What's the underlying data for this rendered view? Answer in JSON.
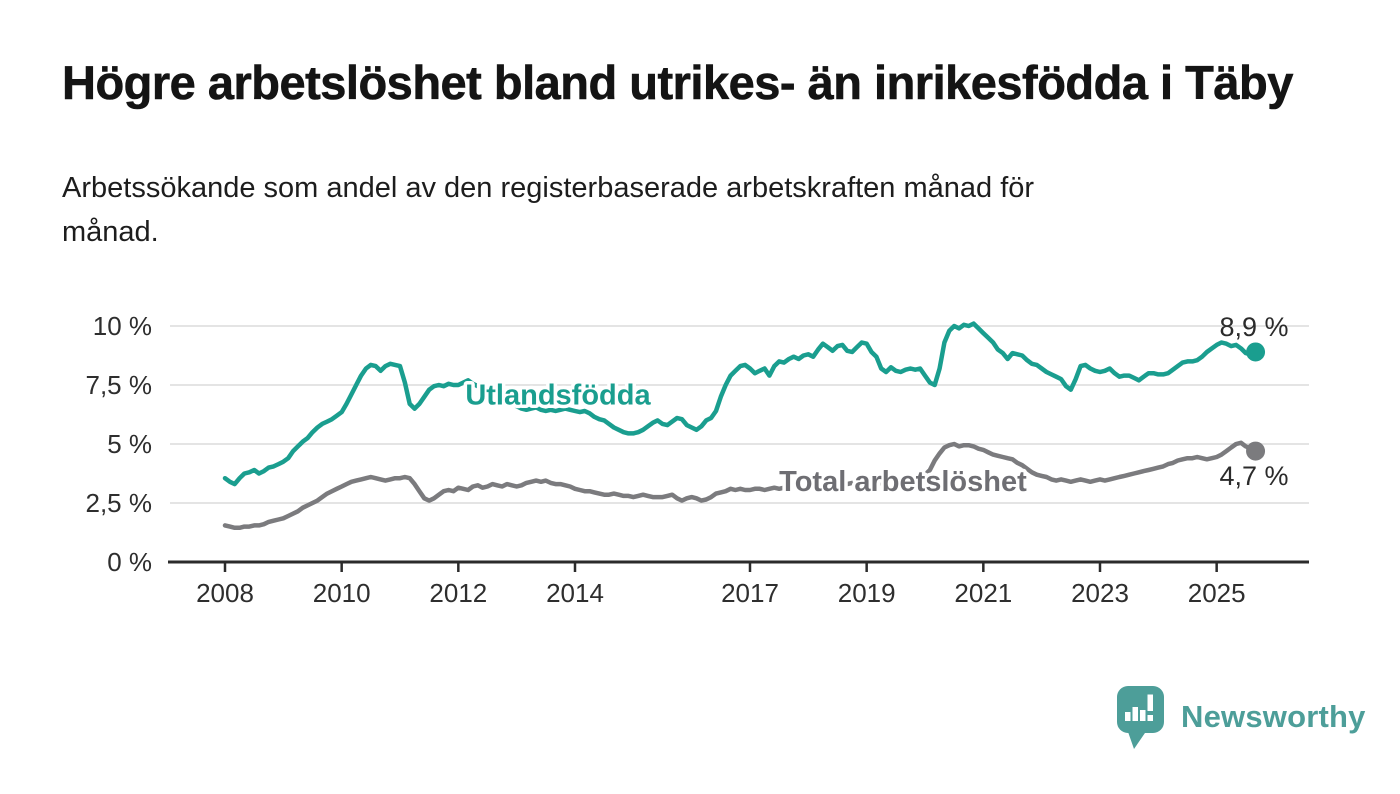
{
  "header": {
    "title": "Högre arbetslöshet bland utrikes- än inrikesfödda i Täby",
    "subtitle_lines": [
      "Arbetssökande som andel av den registerbaserade arbetskraften månad för",
      "månad."
    ]
  },
  "chart_data": {
    "type": "line",
    "title": "",
    "xlabel": "",
    "ylabel": "",
    "x_unit": "monthly, decimal years",
    "x_start_year": 2008,
    "x_step_months": 1,
    "x_end": "2025-09",
    "ylim": [
      0,
      10.5
    ],
    "grid": true,
    "legend_position": "inline-labels",
    "y_ticks": [
      {
        "value": 0,
        "label": "0 %"
      },
      {
        "value": 2.5,
        "label": "2,5 %"
      },
      {
        "value": 5,
        "label": "5 %"
      },
      {
        "value": 7.5,
        "label": "7,5 %"
      },
      {
        "value": 10,
        "label": "10 %"
      }
    ],
    "x_ticks": [
      {
        "year": 2008,
        "label": "2008"
      },
      {
        "year": 2010,
        "label": "2010"
      },
      {
        "year": 2012,
        "label": "2012"
      },
      {
        "year": 2014,
        "label": "2014"
      },
      {
        "year": 2017,
        "label": "2017"
      },
      {
        "year": 2019,
        "label": "2019"
      },
      {
        "year": 2021,
        "label": "2021"
      },
      {
        "year": 2023,
        "label": "2023"
      },
      {
        "year": 2025,
        "label": "2025"
      }
    ],
    "colors": {
      "grid": "#dcdcdc",
      "axis": "#2b2b2b",
      "tick_text": "#2e2e2e",
      "value_text": "#2b2b2b"
    },
    "series": [
      {
        "name": "Utlandsfödda",
        "color": "#1a9e8f",
        "label_color": "#1a9e8f",
        "label_anchor": {
          "x_year": 2012.12,
          "y_value": 6.68
        },
        "end_label": "8,9 %",
        "end_value": 8.9,
        "values": [
          3.55,
          3.4,
          3.3,
          3.55,
          3.75,
          3.8,
          3.9,
          3.75,
          3.85,
          4.0,
          4.05,
          4.15,
          4.25,
          4.4,
          4.7,
          4.9,
          5.1,
          5.25,
          5.5,
          5.7,
          5.85,
          5.95,
          6.05,
          6.2,
          6.35,
          6.7,
          7.1,
          7.5,
          7.9,
          8.2,
          8.35,
          8.3,
          8.1,
          8.3,
          8.4,
          8.35,
          8.3,
          7.6,
          6.7,
          6.5,
          6.7,
          7.0,
          7.3,
          7.45,
          7.5,
          7.45,
          7.55,
          7.5,
          7.5,
          7.6,
          7.7,
          7.55,
          7.45,
          7.5,
          7.4,
          7.3,
          7.2,
          7.1,
          6.95,
          6.8,
          6.6,
          6.5,
          6.45,
          6.5,
          6.55,
          6.45,
          6.4,
          6.45,
          6.4,
          6.45,
          6.5,
          6.45,
          6.4,
          6.35,
          6.4,
          6.3,
          6.15,
          6.05,
          6.0,
          5.85,
          5.7,
          5.6,
          5.5,
          5.45,
          5.45,
          5.5,
          5.6,
          5.75,
          5.9,
          6.0,
          5.85,
          5.8,
          5.95,
          6.1,
          6.05,
          5.8,
          5.7,
          5.6,
          5.75,
          6.0,
          6.1,
          6.4,
          7.0,
          7.5,
          7.9,
          8.1,
          8.3,
          8.35,
          8.2,
          8.0,
          8.1,
          8.2,
          7.9,
          8.3,
          8.5,
          8.45,
          8.6,
          8.7,
          8.6,
          8.75,
          8.8,
          8.7,
          9.0,
          9.25,
          9.1,
          8.95,
          9.15,
          9.2,
          8.95,
          8.9,
          9.1,
          9.3,
          9.25,
          8.9,
          8.7,
          8.2,
          8.05,
          8.25,
          8.1,
          8.05,
          8.15,
          8.2,
          8.15,
          8.2,
          7.9,
          7.6,
          7.5,
          8.2,
          9.3,
          9.8,
          10.0,
          9.9,
          10.05,
          10.0,
          10.1,
          9.9,
          9.7,
          9.5,
          9.3,
          9.0,
          8.85,
          8.6,
          8.85,
          8.8,
          8.75,
          8.55,
          8.4,
          8.35,
          8.2,
          8.05,
          7.95,
          7.85,
          7.75,
          7.45,
          7.3,
          7.75,
          8.3,
          8.35,
          8.2,
          8.1,
          8.05,
          8.1,
          8.2,
          8.0,
          7.85,
          7.9,
          7.9,
          7.8,
          7.7,
          7.85,
          8.0,
          8.0,
          7.95,
          7.95,
          8.0,
          8.15,
          8.3,
          8.45,
          8.5,
          8.5,
          8.55,
          8.7,
          8.9,
          9.05,
          9.2,
          9.3,
          9.25,
          9.15,
          9.2,
          9.05,
          8.85,
          8.8,
          8.9
        ]
      },
      {
        "name": "Total arbetslöshet",
        "color": "#7b7b7e",
        "label_color": "#6e6e73",
        "label_anchor": {
          "x_year": 2017.5,
          "y_value": 3.0
        },
        "end_label": "4,7 %",
        "end_value": 4.7,
        "values": [
          1.55,
          1.5,
          1.45,
          1.45,
          1.5,
          1.5,
          1.55,
          1.55,
          1.6,
          1.7,
          1.75,
          1.8,
          1.85,
          1.95,
          2.05,
          2.15,
          2.3,
          2.4,
          2.5,
          2.6,
          2.75,
          2.9,
          3.0,
          3.1,
          3.2,
          3.3,
          3.4,
          3.45,
          3.5,
          3.55,
          3.6,
          3.55,
          3.5,
          3.45,
          3.5,
          3.55,
          3.55,
          3.6,
          3.55,
          3.3,
          3.0,
          2.7,
          2.6,
          2.7,
          2.85,
          3.0,
          3.05,
          3.0,
          3.15,
          3.1,
          3.05,
          3.2,
          3.25,
          3.15,
          3.2,
          3.3,
          3.25,
          3.2,
          3.3,
          3.25,
          3.2,
          3.25,
          3.35,
          3.4,
          3.45,
          3.4,
          3.45,
          3.35,
          3.3,
          3.3,
          3.25,
          3.2,
          3.1,
          3.05,
          3.0,
          3.0,
          2.95,
          2.9,
          2.85,
          2.85,
          2.9,
          2.85,
          2.8,
          2.8,
          2.75,
          2.8,
          2.85,
          2.8,
          2.75,
          2.75,
          2.75,
          2.8,
          2.85,
          2.7,
          2.6,
          2.7,
          2.75,
          2.7,
          2.6,
          2.65,
          2.75,
          2.9,
          2.95,
          3.0,
          3.1,
          3.05,
          3.1,
          3.05,
          3.05,
          3.1,
          3.1,
          3.05,
          3.1,
          3.15,
          3.1,
          3.15,
          3.2,
          3.2,
          3.25,
          3.2,
          3.25,
          3.3,
          3.3,
          3.35,
          3.3,
          3.35,
          3.3,
          3.35,
          3.3,
          3.35,
          3.4,
          3.35,
          3.4,
          3.35,
          3.3,
          3.35,
          3.4,
          3.45,
          3.4,
          3.45,
          3.5,
          3.45,
          3.5,
          3.55,
          3.7,
          3.9,
          4.3,
          4.6,
          4.85,
          4.95,
          5.0,
          4.9,
          4.95,
          4.95,
          4.9,
          4.8,
          4.75,
          4.65,
          4.55,
          4.5,
          4.45,
          4.4,
          4.35,
          4.2,
          4.1,
          3.95,
          3.8,
          3.7,
          3.65,
          3.6,
          3.5,
          3.45,
          3.5,
          3.45,
          3.4,
          3.45,
          3.5,
          3.45,
          3.4,
          3.45,
          3.5,
          3.45,
          3.5,
          3.55,
          3.6,
          3.65,
          3.7,
          3.75,
          3.8,
          3.85,
          3.9,
          3.95,
          4.0,
          4.05,
          4.15,
          4.2,
          4.3,
          4.35,
          4.4,
          4.4,
          4.45,
          4.4,
          4.35,
          4.4,
          4.45,
          4.55,
          4.7,
          4.85,
          5.0,
          5.05,
          4.9,
          4.8,
          4.7
        ]
      }
    ]
  },
  "footer": {
    "brand": "Newsworthy",
    "brand_color": "#4d9e99"
  }
}
